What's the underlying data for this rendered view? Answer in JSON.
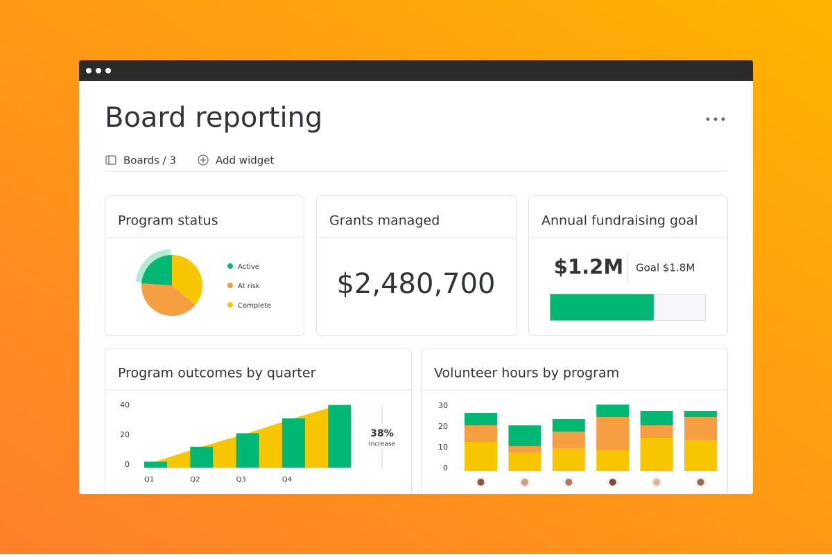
{
  "header": {
    "title": "Board reporting",
    "breadcrumb": "Boards / 3",
    "action": "Add widget"
  },
  "grants": {
    "title": "Grants managed",
    "value": "$2,480,700"
  },
  "chart_data": [
    {
      "type": "pie",
      "title": "Program status",
      "categories": [
        "Active",
        "At risk",
        "Complete"
      ],
      "values": [
        24,
        40,
        36
      ],
      "colors": [
        "#00b874",
        "#f59e42",
        "#f7c600"
      ]
    },
    {
      "type": "progress",
      "title": "Annual fundraising goal",
      "values": [
        1200000
      ],
      "value_labels": [
        "$1.2M"
      ],
      "goal": 1800000,
      "goal_label": "Goal $1.8M",
      "color": "#00b874"
    },
    {
      "type": "bar",
      "title": "Program outcomes by quarter",
      "categories": [
        "Q1",
        "Q2",
        "Q3",
        "Q4",
        null
      ],
      "values": [
        4,
        14,
        23,
        33,
        42
      ],
      "color": "#00b874",
      "area_color": "#f7c600",
      "ylim": [
        0,
        45
      ],
      "yticks": [
        0,
        20,
        40
      ],
      "annotation": "38%",
      "annotation_sub": "Increase"
    },
    {
      "type": "stacked_bar",
      "title": "Volunteer hours by program",
      "categories": [
        null,
        null,
        null,
        null,
        null,
        null
      ],
      "series": [
        {
          "color": "#f7c600",
          "values": [
            14,
            9,
            11,
            10,
            16,
            15
          ]
        },
        {
          "color": "#f59e42",
          "values": [
            8,
            3,
            8,
            16,
            6,
            11
          ]
        },
        {
          "color": "#00b874",
          "values": [
            6,
            10,
            6,
            6,
            7,
            3
          ]
        }
      ],
      "ylim": [
        0,
        32
      ],
      "yticks": [
        0,
        10,
        20,
        30
      ]
    }
  ]
}
